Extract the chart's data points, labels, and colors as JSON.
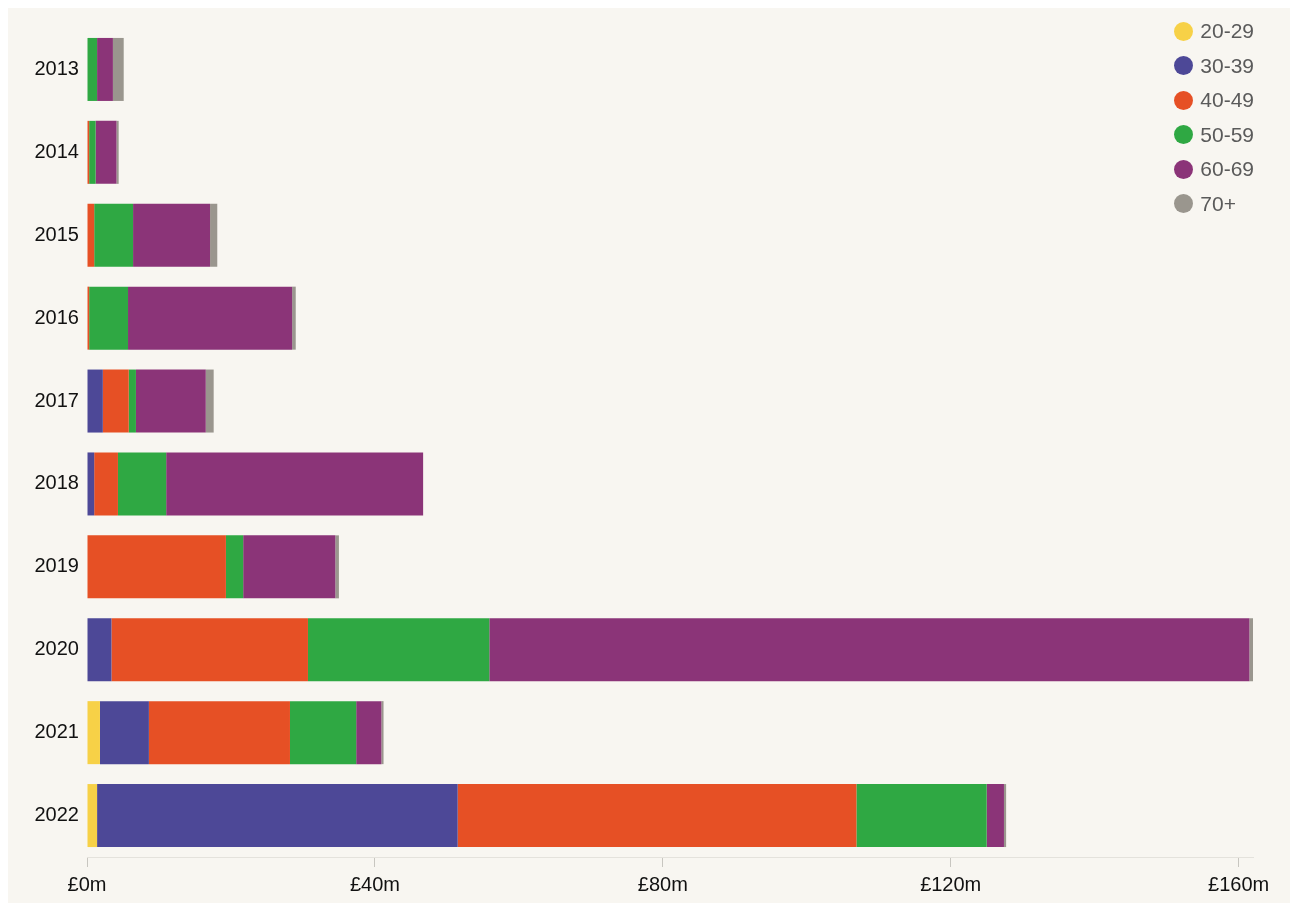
{
  "chart_data": {
    "type": "bar",
    "orientation": "horizontal",
    "stacked": true,
    "categories": [
      "2013",
      "2014",
      "2015",
      "2016",
      "2017",
      "2018",
      "2019",
      "2020",
      "2021",
      "2022"
    ],
    "series": [
      {
        "name": "20-29",
        "color": "#f7d147",
        "values": [
          0,
          0,
          0,
          0,
          0,
          0,
          0,
          0,
          1.8,
          1.4
        ]
      },
      {
        "name": "30-39",
        "color": "#4d4897",
        "values": [
          0,
          0,
          0,
          0,
          2.2,
          1.0,
          0,
          3.4,
          6.8,
          50.1
        ]
      },
      {
        "name": "40-49",
        "color": "#e65025",
        "values": [
          0,
          0.3,
          1.0,
          0.3,
          3.6,
          3.3,
          19.3,
          27.3,
          19.6,
          55.4
        ]
      },
      {
        "name": "50-59",
        "color": "#2fa843",
        "values": [
          1.4,
          0.9,
          5.4,
          5.4,
          1.0,
          6.7,
          2.4,
          25.2,
          9.2,
          18.1
        ]
      },
      {
        "name": "60-69",
        "color": "#8b3478",
        "values": [
          2.2,
          2.9,
          10.7,
          22.8,
          9.7,
          35.7,
          12.8,
          105.6,
          3.5,
          2.4
        ]
      },
      {
        "name": "70+",
        "color": "#9a968e",
        "values": [
          1.5,
          0.3,
          1.0,
          0.5,
          1.1,
          0,
          0.5,
          0.5,
          0.3,
          0.3
        ]
      }
    ],
    "xlim": [
      0,
      162
    ],
    "xticks": [
      {
        "value": 0,
        "label": "£0m"
      },
      {
        "value": 40,
        "label": "£40m"
      },
      {
        "value": 80,
        "label": "£80m"
      },
      {
        "value": 120,
        "label": "£120m"
      },
      {
        "value": 160,
        "label": "£160m"
      }
    ],
    "grid": false,
    "legend": "top right"
  }
}
